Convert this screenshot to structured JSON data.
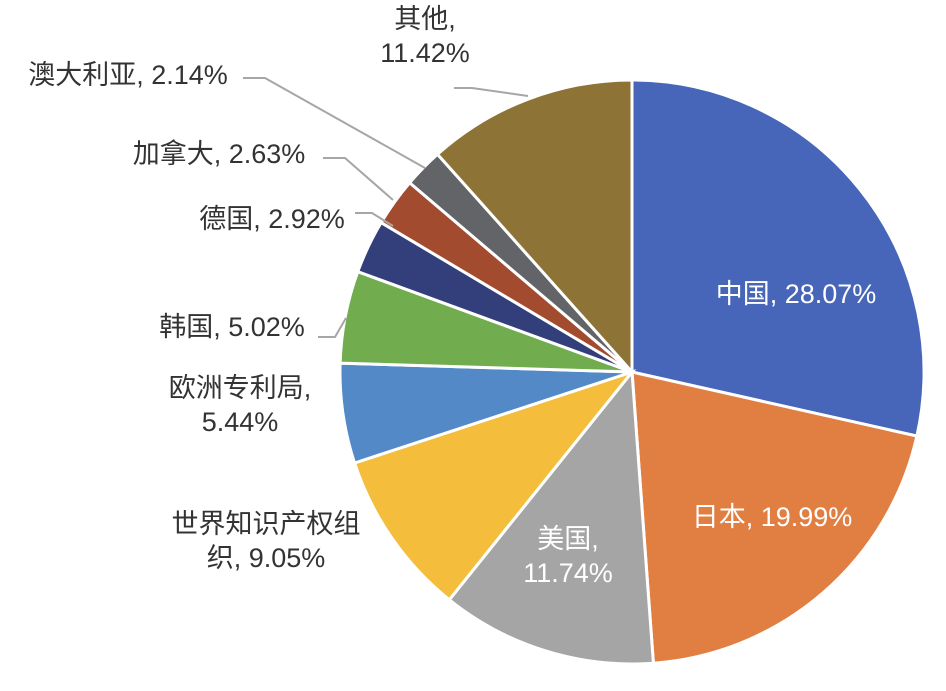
{
  "chart_data": {
    "type": "pie",
    "title": "",
    "unit": "%",
    "start_angle_deg": 0,
    "direction": "clockwise",
    "slices": [
      {
        "name": "中国",
        "value": 28.07,
        "color": "#4766b9",
        "label": [
          "中国, 28.07%"
        ]
      },
      {
        "name": "日本",
        "value": 19.99,
        "color": "#e17f42",
        "label": [
          "日本, 19.99%"
        ]
      },
      {
        "name": "美国",
        "value": 11.74,
        "color": "#a5a5a5",
        "label": [
          "美国,",
          "11.74%"
        ]
      },
      {
        "name": "世界知识产权组织",
        "value": 9.05,
        "color": "#f4bd3b",
        "label": [
          "世界知识产权组",
          "织, 9.05%"
        ]
      },
      {
        "name": "欧洲专利局",
        "value": 5.44,
        "color": "#5389c6",
        "label": [
          "欧洲专利局,",
          "5.44%"
        ]
      },
      {
        "name": "韩国",
        "value": 5.02,
        "color": "#71ad4f",
        "label": [
          "韩国, 5.02%"
        ]
      },
      {
        "name": "德国",
        "value": 2.92,
        "color": "#333f7a",
        "label": [
          "德国, 2.92%"
        ]
      },
      {
        "name": "加拿大",
        "value": 2.63,
        "color": "#a24b2e",
        "label": [
          "加拿大, 2.63%"
        ]
      },
      {
        "name": "澳大利亚",
        "value": 2.14,
        "color": "#626467",
        "label": [
          "澳大利亚, 2.14%"
        ]
      },
      {
        "name": "其他",
        "value": 11.42,
        "color": "#8d7436",
        "label": [
          "其他,",
          "11.42%"
        ]
      }
    ]
  }
}
